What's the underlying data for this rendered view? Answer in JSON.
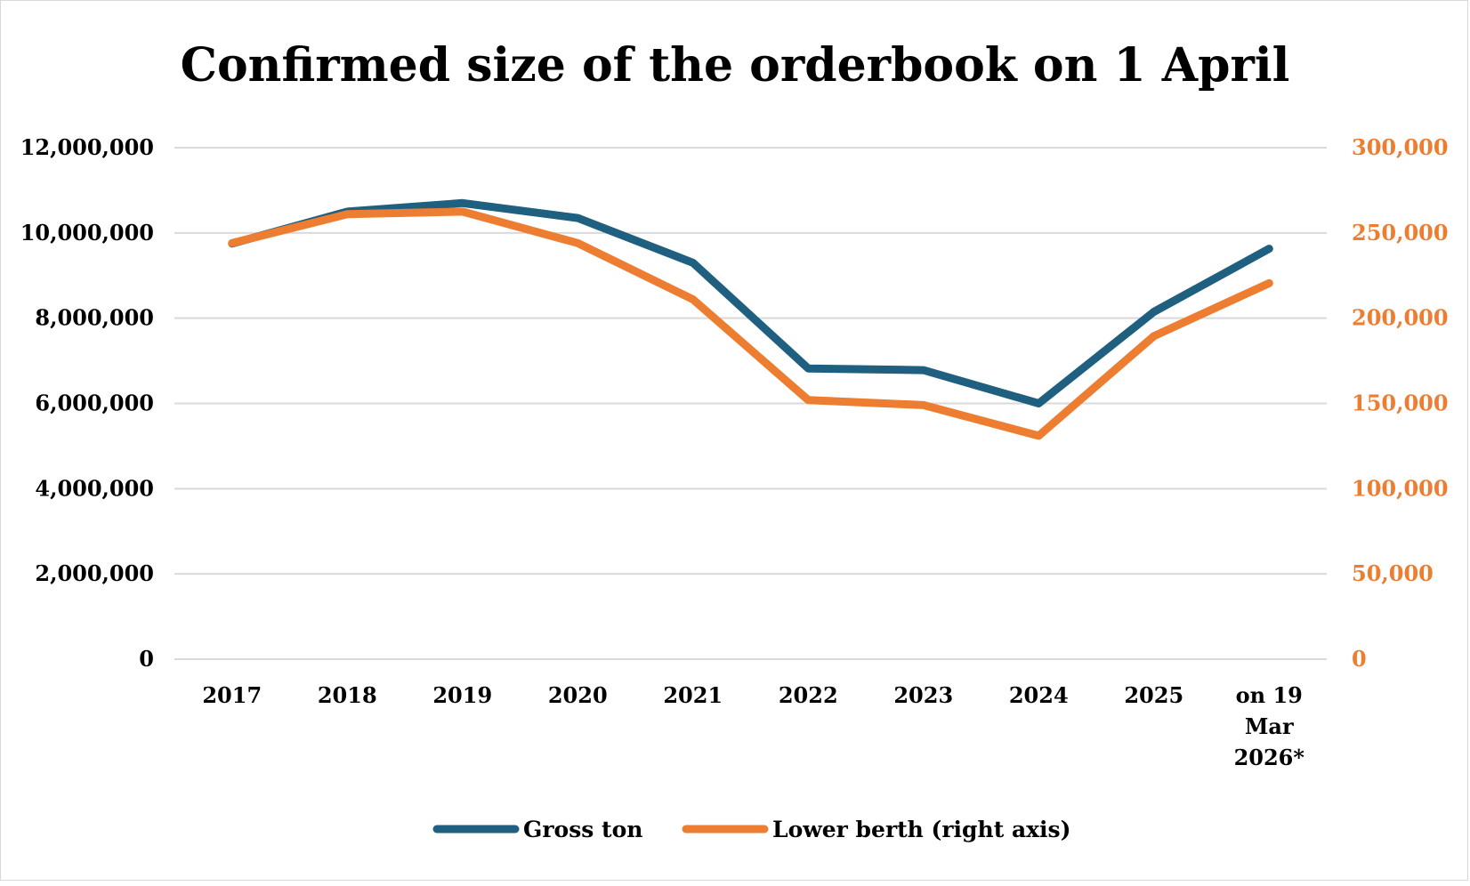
{
  "chart_data": {
    "type": "line",
    "title": "Confirmed size of the orderbook on 1 April",
    "categories": [
      "2017",
      "2018",
      "2019",
      "2020",
      "2021",
      "2022",
      "2023",
      "2024",
      "2025",
      "on 19 Mar 2026*"
    ],
    "category_lines": [
      [
        "2017"
      ],
      [
        "2018"
      ],
      [
        "2019"
      ],
      [
        "2020"
      ],
      [
        "2021"
      ],
      [
        "2022"
      ],
      [
        "2023"
      ],
      [
        "2024"
      ],
      [
        "2025"
      ],
      [
        "on 19",
        "Mar",
        "2026*"
      ]
    ],
    "y_left": {
      "min": 0,
      "max": 12000000,
      "ticks": [
        0,
        2000000,
        4000000,
        6000000,
        8000000,
        10000000,
        12000000
      ],
      "tick_labels": [
        "0",
        "2,000,000",
        "4,000,000",
        "6,000,000",
        "8,000,000",
        "10,000,000",
        "12,000,000"
      ]
    },
    "y_right": {
      "min": 0,
      "max": 300000,
      "ticks": [
        0,
        50000,
        100000,
        150000,
        200000,
        250000,
        300000
      ],
      "tick_labels": [
        "0",
        "50,000",
        "100,000",
        "150,000",
        "200,000",
        "250,000",
        "300,000"
      ]
    },
    "series": [
      {
        "name": "Gross ton",
        "axis": "left",
        "color": "#1f5f7f",
        "values": [
          9750000,
          10500000,
          10700000,
          10350000,
          9300000,
          6820000,
          6780000,
          6000000,
          8150000,
          9630000
        ]
      },
      {
        "name": "Lower berth (right axis)",
        "axis": "right",
        "color": "#ed7d31",
        "values": [
          244000,
          261000,
          262500,
          244000,
          211000,
          152000,
          149000,
          131000,
          189500,
          220500
        ]
      }
    ],
    "grid": true,
    "legend_position": "bottom",
    "right_axis_color": "#ed7d31"
  }
}
